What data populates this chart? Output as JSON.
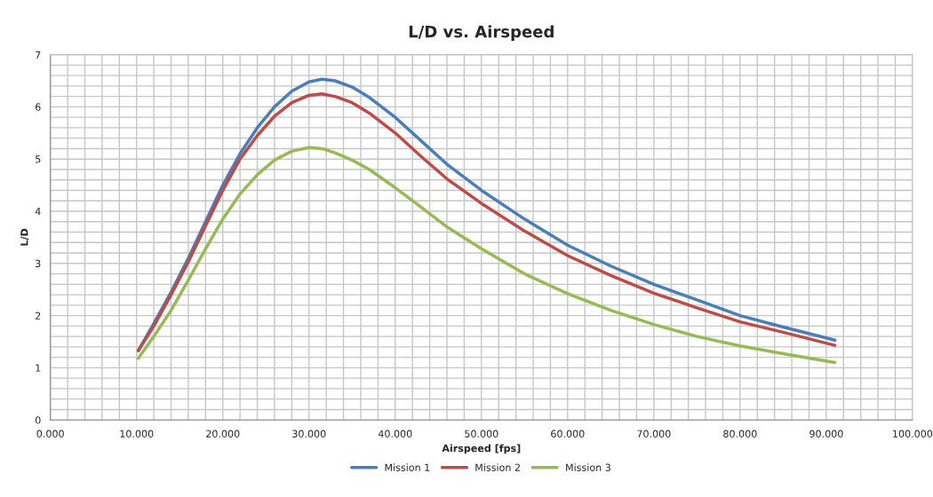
{
  "chart_data": {
    "type": "line",
    "title": "L/D vs. Airspeed",
    "xlabel": "Airspeed [fps]",
    "ylabel": "L/D",
    "x": [
      10.2,
      12,
      14,
      16,
      18,
      20,
      22,
      24,
      26,
      28,
      30,
      31.5,
      33,
      35,
      37,
      40,
      43,
      46,
      50,
      55,
      60,
      65,
      70,
      75,
      80,
      85,
      91
    ],
    "series": [
      {
        "name": "Mission 1",
        "color": "#4a7ebb",
        "values": [
          1.33,
          1.85,
          2.45,
          3.1,
          3.8,
          4.5,
          5.1,
          5.6,
          6.0,
          6.3,
          6.48,
          6.53,
          6.5,
          6.38,
          6.18,
          5.8,
          5.35,
          4.9,
          4.4,
          3.85,
          3.35,
          2.95,
          2.6,
          2.3,
          2.0,
          1.78,
          1.53
        ]
      },
      {
        "name": "Mission 2",
        "color": "#be4b48",
        "values": [
          1.33,
          1.8,
          2.4,
          3.03,
          3.72,
          4.4,
          5.0,
          5.45,
          5.82,
          6.08,
          6.22,
          6.25,
          6.2,
          6.08,
          5.88,
          5.5,
          5.05,
          4.62,
          4.15,
          3.62,
          3.15,
          2.77,
          2.43,
          2.15,
          1.88,
          1.68,
          1.43
        ]
      },
      {
        "name": "Mission 3",
        "color": "#98b954",
        "values": [
          1.18,
          1.6,
          2.1,
          2.68,
          3.28,
          3.85,
          4.33,
          4.7,
          4.98,
          5.15,
          5.22,
          5.2,
          5.12,
          4.98,
          4.8,
          4.45,
          4.08,
          3.7,
          3.28,
          2.8,
          2.42,
          2.1,
          1.83,
          1.6,
          1.42,
          1.27,
          1.1
        ]
      }
    ],
    "xlim": [
      0,
      100
    ],
    "ylim": [
      0,
      7
    ],
    "xticks": [
      {
        "value": 0,
        "label": "0.000"
      },
      {
        "value": 2,
        "label": null
      },
      {
        "value": 4,
        "label": null
      },
      {
        "value": 6,
        "label": null
      },
      {
        "value": 8,
        "label": null
      },
      {
        "value": 10,
        "label": "10.000"
      },
      {
        "value": 12,
        "label": null
      },
      {
        "value": 14,
        "label": null
      },
      {
        "value": 16,
        "label": null
      },
      {
        "value": 18,
        "label": null
      },
      {
        "value": 20,
        "label": "20.000"
      },
      {
        "value": 22,
        "label": null
      },
      {
        "value": 24,
        "label": null
      },
      {
        "value": 26,
        "label": null
      },
      {
        "value": 28,
        "label": null
      },
      {
        "value": 30,
        "label": "30.000"
      },
      {
        "value": 32,
        "label": null
      },
      {
        "value": 34,
        "label": null
      },
      {
        "value": 36,
        "label": null
      },
      {
        "value": 38,
        "label": null
      },
      {
        "value": 40,
        "label": "40.000"
      },
      {
        "value": 42,
        "label": null
      },
      {
        "value": 44,
        "label": null
      },
      {
        "value": 46,
        "label": null
      },
      {
        "value": 48,
        "label": null
      },
      {
        "value": 50,
        "label": "50.000"
      },
      {
        "value": 52,
        "label": null
      },
      {
        "value": 54,
        "label": null
      },
      {
        "value": 56,
        "label": null
      },
      {
        "value": 58,
        "label": null
      },
      {
        "value": 60,
        "label": "60.000"
      },
      {
        "value": 62,
        "label": null
      },
      {
        "value": 64,
        "label": null
      },
      {
        "value": 66,
        "label": null
      },
      {
        "value": 68,
        "label": null
      },
      {
        "value": 70,
        "label": "70.000"
      },
      {
        "value": 72,
        "label": null
      },
      {
        "value": 74,
        "label": null
      },
      {
        "value": 76,
        "label": null
      },
      {
        "value": 78,
        "label": null
      },
      {
        "value": 80,
        "label": "80.000"
      },
      {
        "value": 82,
        "label": null
      },
      {
        "value": 84,
        "label": null
      },
      {
        "value": 86,
        "label": null
      },
      {
        "value": 88,
        "label": null
      },
      {
        "value": 90,
        "label": "90.000"
      },
      {
        "value": 92,
        "label": null
      },
      {
        "value": 94,
        "label": null
      },
      {
        "value": 96,
        "label": null
      },
      {
        "value": 98,
        "label": null
      },
      {
        "value": 100,
        "label": "100.000"
      }
    ],
    "yticks": [
      0,
      {
        "value": 0.2,
        "label": null
      },
      {
        "value": 0.4,
        "label": null
      },
      {
        "value": 0.6,
        "label": null
      },
      {
        "value": 0.8,
        "label": null
      },
      1,
      {
        "value": 1.2,
        "label": null
      },
      {
        "value": 1.4,
        "label": null
      },
      {
        "value": 1.6,
        "label": null
      },
      {
        "value": 1.8,
        "label": null
      },
      2,
      {
        "value": 2.2,
        "label": null
      },
      {
        "value": 2.4,
        "label": null
      },
      {
        "value": 2.6,
        "label": null
      },
      {
        "value": 2.8,
        "label": null
      },
      3,
      {
        "value": 3.2,
        "label": null
      },
      {
        "value": 3.4,
        "label": null
      },
      {
        "value": 3.6,
        "label": null
      },
      {
        "value": 3.8,
        "label": null
      },
      4,
      {
        "value": 4.2,
        "label": null
      },
      {
        "value": 4.4,
        "label": null
      },
      {
        "value": 4.6,
        "label": null
      },
      {
        "value": 4.8,
        "label": null
      },
      5,
      {
        "value": 5.2,
        "label": null
      },
      {
        "value": 5.4,
        "label": null
      },
      {
        "value": 5.6,
        "label": null
      },
      {
        "value": 5.8,
        "label": null
      },
      6,
      {
        "value": 6.2,
        "label": null
      },
      {
        "value": 6.4,
        "label": null
      },
      {
        "value": 6.6,
        "label": null
      },
      {
        "value": 6.8,
        "label": null
      },
      7
    ],
    "grid": true,
    "legend": "bottom",
    "marker": "none",
    "line_style": "solid"
  }
}
